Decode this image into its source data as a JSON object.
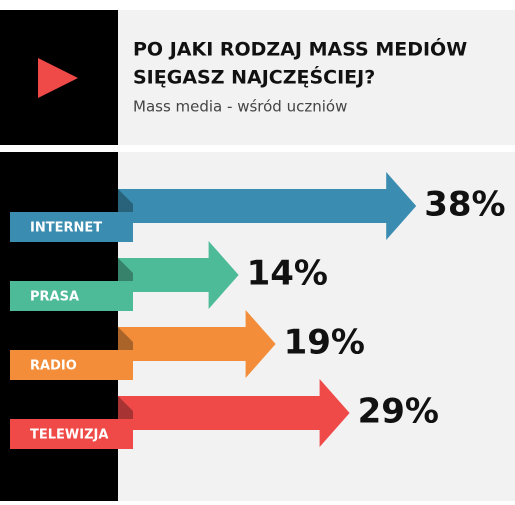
{
  "chart_data": {
    "type": "bar",
    "title": [
      "PO JAKI RODZAJ MASS MEDIÓW",
      "SIĘGASZ NAJCZĘŚCIEJ?"
    ],
    "subtitle": "Mass media - wśród uczniów",
    "categories": [
      "INTERNET",
      "PRASA",
      "RADIO",
      "TELEWIZJA"
    ],
    "values": [
      38,
      14,
      19,
      29
    ],
    "value_labels": [
      "38%",
      "14%",
      "19%",
      "29%"
    ],
    "colors": [
      "#3a8db0",
      "#4dba98",
      "#f38d39",
      "#ef4a48"
    ]
  }
}
